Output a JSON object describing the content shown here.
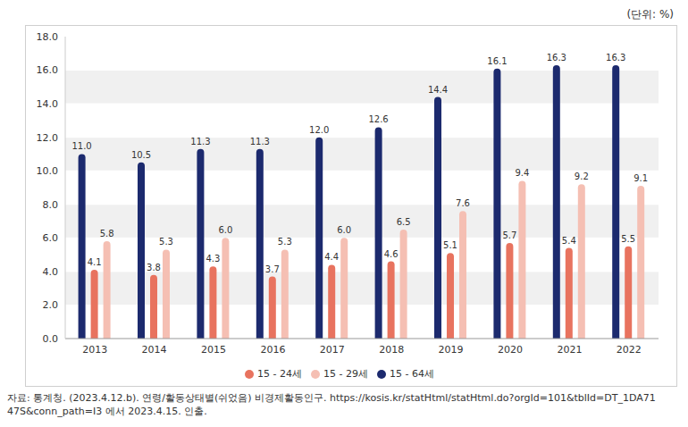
{
  "chart_data": {
    "type": "bar",
    "y_label": "(단위: %)",
    "source": "자료: 통계청. (2023.4.12.b). 연령/활동상태별(쉬었음) 비경제활동인구. https://kosis.kr/statHtml/statHtml.do?orgId=101&tblId=DT_1DA7147S&conn_path=I3 에서 2023.4.15. 인출.",
    "categories": [
      "2013",
      "2014",
      "2015",
      "2016",
      "2017",
      "2018",
      "2019",
      "2020",
      "2021",
      "2022"
    ],
    "series": [
      {
        "name": "15 - 64세",
        "color": "#1c2a6e",
        "values": [
          11.0,
          10.5,
          11.3,
          11.3,
          12.0,
          12.6,
          14.4,
          16.1,
          16.3,
          16.3
        ],
        "value_labels": [
          "11.0",
          "10.5",
          "11.3",
          "11.3",
          "12.0",
          "12.6",
          "14.4",
          "16.1",
          "16.3",
          "16.3"
        ]
      },
      {
        "name": "15 - 24세",
        "color": "#e8735f",
        "values": [
          4.1,
          3.8,
          4.3,
          3.7,
          4.4,
          4.6,
          5.1,
          5.7,
          5.4,
          5.5
        ],
        "value_labels": [
          "4.1",
          "3.8",
          "4.3",
          "3.7",
          "4.4",
          "4.6",
          "5.1",
          "5.7",
          "5.4",
          "5.5"
        ]
      },
      {
        "name": "15 - 29세",
        "color": "#f5bfb3",
        "values": [
          5.8,
          5.3,
          6.0,
          5.3,
          6.0,
          6.5,
          7.6,
          9.4,
          9.2,
          9.1
        ],
        "value_labels": [
          "5.8",
          "5.3",
          "6.0",
          "5.3",
          "6.0",
          "6.5",
          "7.6",
          "9.4",
          "9.2",
          "9.1"
        ]
      }
    ],
    "ylim": [
      0,
      18
    ],
    "yticks": [
      {
        "value": 0,
        "label": "0.0"
      },
      {
        "value": 2,
        "label": "2.0"
      },
      {
        "value": 4,
        "label": "4.0"
      },
      {
        "value": 6,
        "label": "6.0"
      },
      {
        "value": 8,
        "label": "8.0"
      },
      {
        "value": 10,
        "label": "10.0"
      },
      {
        "value": 12,
        "label": "12.0"
      },
      {
        "value": 14,
        "label": "14.0"
      },
      {
        "value": 16,
        "label": "16.0"
      },
      {
        "value": 18,
        "label": "18.0"
      }
    ],
    "grid": true,
    "legend": "bottom",
    "data_labels": true
  }
}
